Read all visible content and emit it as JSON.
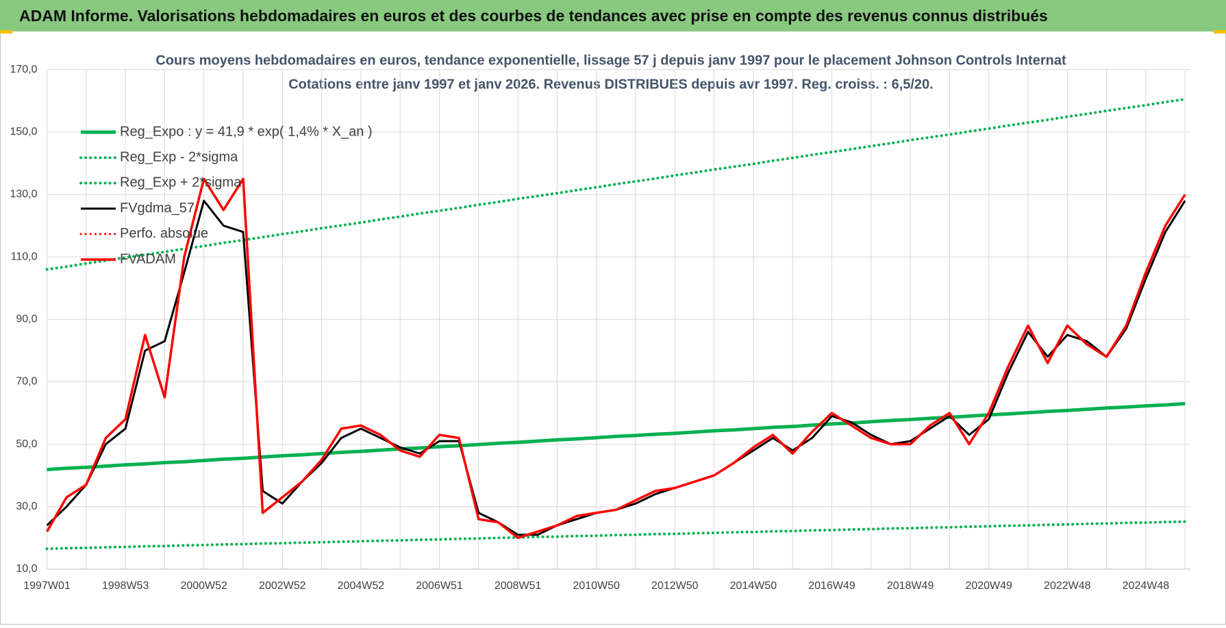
{
  "header": {
    "title": "ADAM Informe. Valorisations hebdomadaires en euros et des courbes de tendances avec prise en compte des revenus connus distribués"
  },
  "chart_data": {
    "type": "line",
    "title": "Cours moyens hebdomadaires en euros, tendance exponentielle, lissage 57 j depuis janv 1997 pour le placement Johnson Controls Internat",
    "subtitle": "Cotations entre janv 1997 et janv 2026. Revenus DISTRIBUES depuis avr 1997. Reg. croiss. : 6,5/20.",
    "categories": [
      "1997W01",
      null,
      null,
      null,
      "1998W53",
      null,
      null,
      null,
      "2000W52",
      null,
      null,
      null,
      "2002W52",
      null,
      null,
      null,
      "2004W52",
      null,
      null,
      null,
      "2006W51",
      null,
      null,
      null,
      "2008W51",
      null,
      null,
      null,
      "2010W50",
      null,
      null,
      null,
      "2012W50",
      null,
      null,
      null,
      "2014W50",
      null,
      null,
      null,
      "2016W49",
      null,
      null,
      null,
      "2018W49",
      null,
      null,
      null,
      "2020W49",
      null,
      null,
      null,
      "2022W48",
      null,
      null,
      null,
      "2024W48",
      null,
      null
    ],
    "ylim": [
      10,
      170
    ],
    "yticks": [
      {
        "value": 10,
        "label": "10,0"
      },
      {
        "value": 30,
        "label": "30,0"
      },
      {
        "value": 50,
        "label": "50,0"
      },
      {
        "value": 70,
        "label": "70,0"
      },
      {
        "value": 90,
        "label": "90,0"
      },
      {
        "value": 110,
        "label": "110,0"
      },
      {
        "value": 130,
        "label": "130,0"
      },
      {
        "value": 150,
        "label": "150,0"
      },
      {
        "value": 170,
        "label": "170,0"
      }
    ],
    "grid": true,
    "legend": "upper left",
    "series": [
      {
        "name": "Reg_Expo : y = 41,9 * exp( 1,4% *  X_an )",
        "color": "#00b050",
        "dash": "solid",
        "values": [
          41.9,
          42.3,
          42.6,
          43.0,
          43.4,
          43.7,
          44.1,
          44.4,
          44.8,
          45.2,
          45.5,
          45.9,
          46.3,
          46.6,
          47.0,
          47.4,
          47.7,
          48.1,
          48.5,
          48.8,
          49.2,
          49.5,
          49.9,
          50.3,
          50.6,
          51.0,
          51.4,
          51.7,
          52.1,
          52.5,
          52.8,
          53.2,
          53.5,
          53.9,
          54.3,
          54.6,
          55.0,
          55.4,
          55.7,
          56.1,
          56.5,
          56.8,
          57.2,
          57.6,
          57.9,
          58.3,
          58.6,
          59.0,
          59.4,
          59.7,
          60.1,
          60.5,
          60.8,
          61.2,
          61.6,
          61.9,
          62.3,
          62.6,
          63.0
        ]
      },
      {
        "name": "Reg_Exp - 2*sigma",
        "color": "#00b050",
        "dash": "dotted",
        "values": [
          16.5,
          16.7,
          16.8,
          17.0,
          17.1,
          17.3,
          17.4,
          17.6,
          17.7,
          17.9,
          18.0,
          18.2,
          18.3,
          18.5,
          18.6,
          18.8,
          18.9,
          19.1,
          19.2,
          19.4,
          19.5,
          19.7,
          19.8,
          20.0,
          20.1,
          20.3,
          20.4,
          20.6,
          20.7,
          20.9,
          21.0,
          21.2,
          21.3,
          21.5,
          21.6,
          21.8,
          21.9,
          22.1,
          22.2,
          22.4,
          22.5,
          22.7,
          22.8,
          23.0,
          23.1,
          23.3,
          23.4,
          23.6,
          23.7,
          23.9,
          24.0,
          24.2,
          24.3,
          24.5,
          24.6,
          24.8,
          24.9,
          25.1,
          25.2
        ]
      },
      {
        "name": "Reg_Exp + 2*sigma",
        "color": "#00b050",
        "dash": "dotted",
        "values": [
          106.0,
          106.9,
          107.9,
          108.8,
          109.8,
          110.7,
          111.6,
          112.6,
          113.5,
          114.5,
          115.4,
          116.3,
          117.3,
          118.2,
          119.2,
          120.1,
          121.0,
          122.0,
          122.9,
          123.9,
          124.8,
          125.7,
          126.7,
          127.6,
          128.6,
          129.5,
          130.4,
          131.4,
          132.3,
          133.3,
          134.2,
          135.1,
          136.1,
          137.0,
          138.0,
          138.9,
          139.8,
          140.8,
          141.7,
          142.7,
          143.6,
          144.5,
          145.5,
          146.4,
          147.4,
          148.3,
          149.2,
          150.2,
          151.1,
          152.1,
          153.0,
          153.9,
          154.9,
          155.8,
          156.8,
          157.7,
          158.6,
          159.6,
          160.5
        ]
      },
      {
        "name": "FVgdma_57",
        "color": "#000000",
        "dash": "solid",
        "values": [
          24,
          30,
          37,
          50,
          55,
          80,
          83,
          105,
          128,
          120,
          118,
          35,
          31,
          38,
          44,
          52,
          55,
          52,
          49,
          47,
          51,
          51,
          28,
          25,
          21,
          21,
          24,
          26,
          28,
          29,
          31,
          34,
          36,
          38,
          40,
          44,
          48,
          52,
          48,
          52,
          59,
          57,
          53,
          50,
          51,
          55,
          59,
          53,
          58,
          73,
          86,
          78,
          85,
          83,
          78,
          87,
          103,
          118,
          128
        ]
      },
      {
        "name": "Perfo. absolue",
        "color": "#ff0000",
        "dash": "dotted",
        "values": [
          null,
          null,
          null,
          null,
          null,
          null,
          null,
          null,
          null,
          null,
          null,
          null,
          null,
          null,
          null,
          null,
          null,
          null,
          null,
          null,
          null,
          null,
          null,
          null,
          null,
          null,
          null,
          null,
          null,
          null,
          null,
          null,
          null,
          null,
          null,
          null,
          null,
          null,
          null,
          null,
          null,
          null,
          null,
          null,
          null,
          null,
          null,
          null,
          null,
          null,
          null,
          null,
          null,
          null,
          null,
          null,
          null,
          null,
          null
        ]
      },
      {
        "name": "FVADAM",
        "color": "#ff0000",
        "dash": "solid",
        "values": [
          22,
          33,
          37,
          52,
          58,
          85,
          65,
          110,
          135,
          125,
          135,
          28,
          33,
          38,
          45,
          55,
          56,
          53,
          48,
          46,
          53,
          52,
          26,
          25,
          20,
          22,
          24,
          27,
          28,
          29,
          32,
          35,
          36,
          38,
          40,
          44,
          49,
          53,
          47,
          54,
          60,
          56,
          52,
          50,
          50,
          56,
          60,
          50,
          60,
          75,
          88,
          76,
          88,
          82,
          78,
          88,
          105,
          120,
          130
        ]
      }
    ]
  }
}
